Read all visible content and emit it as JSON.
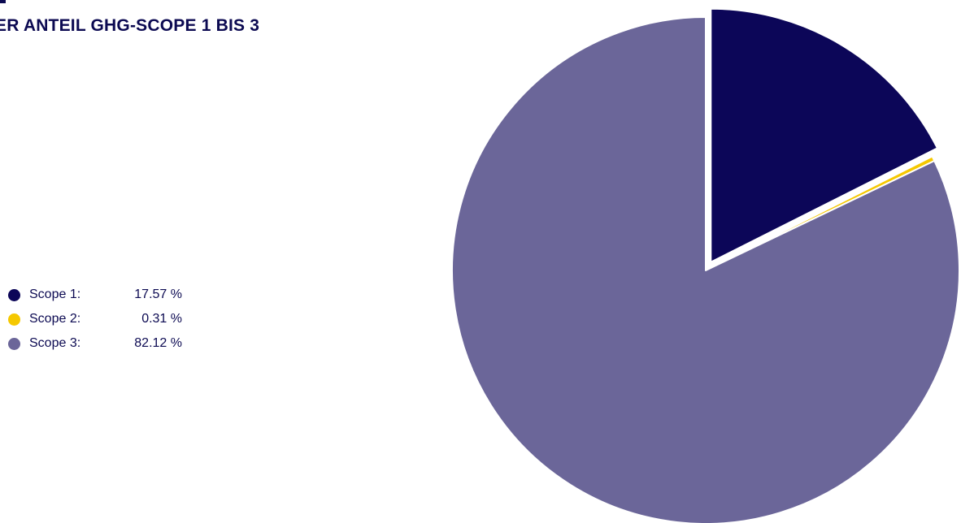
{
  "chart_data": {
    "type": "pie",
    "title": "ER ANTEIL GHG-SCOPE 1 BIS 3",
    "slices": [
      {
        "label": "Scope 1:",
        "value": 17.57,
        "display": "17.57 %",
        "color": "#0c0658",
        "exploded": true
      },
      {
        "label": "Scope 2:",
        "value": 0.31,
        "display": "0.31 %",
        "color": "#f5c800",
        "exploded": false
      },
      {
        "label": "Scope 3:",
        "value": 82.12,
        "display": "82.12 %",
        "color": "#6b6699",
        "exploded": false
      }
    ],
    "legend_position": "left"
  }
}
